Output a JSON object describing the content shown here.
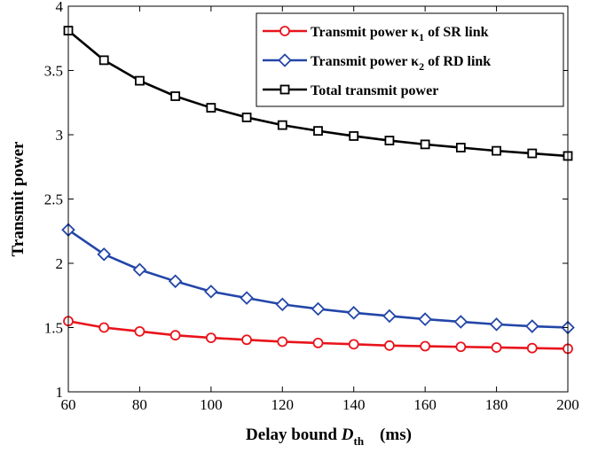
{
  "chart_data": {
    "type": "line",
    "xlabel": "Delay bound D_th (ms)",
    "xlabel_parts": {
      "main": "Delay bound ",
      "var": "D",
      "sub": "th",
      "unit": "(ms)"
    },
    "ylabel": "Transmit power",
    "xlim": [
      60,
      200
    ],
    "ylim": [
      1,
      4
    ],
    "x_ticks": [
      60,
      80,
      100,
      120,
      140,
      160,
      180,
      200
    ],
    "y_ticks": [
      1,
      1.5,
      2,
      2.5,
      3,
      3.5,
      4
    ],
    "x_tick_labels": [
      "60",
      "80",
      "100",
      "120",
      "140",
      "160",
      "180",
      "200"
    ],
    "y_tick_labels": [
      "1",
      "1.5",
      "2",
      "2.5",
      "3",
      "3.5",
      "4"
    ],
    "grid": false,
    "legend_position": "top-right",
    "x": [
      60,
      70,
      80,
      90,
      100,
      110,
      120,
      130,
      140,
      150,
      160,
      170,
      180,
      190,
      200
    ],
    "series": [
      {
        "name": "Transmit power κ1 of SR link",
        "legend": {
          "pre": "Transmit power κ",
          "sub": "1",
          "post": " of SR link"
        },
        "color": "#e8141c",
        "marker": "circle",
        "values": [
          1.55,
          1.5,
          1.47,
          1.44,
          1.42,
          1.405,
          1.39,
          1.38,
          1.37,
          1.36,
          1.355,
          1.35,
          1.345,
          1.34,
          1.335
        ]
      },
      {
        "name": "Transmit power κ2 of RD link",
        "legend": {
          "pre": "Transmit power κ",
          "sub": "2",
          "post": " of RD link"
        },
        "color": "#2346a8",
        "marker": "diamond",
        "values": [
          2.26,
          2.07,
          1.95,
          1.86,
          1.78,
          1.73,
          1.68,
          1.645,
          1.615,
          1.59,
          1.565,
          1.545,
          1.525,
          1.51,
          1.5
        ]
      },
      {
        "name": "Total transmit power",
        "legend": {
          "pre": "Total transmit power",
          "sub": "",
          "post": ""
        },
        "color": "#000000",
        "marker": "square",
        "values": [
          3.81,
          3.58,
          3.42,
          3.3,
          3.21,
          3.135,
          3.075,
          3.03,
          2.99,
          2.955,
          2.925,
          2.9,
          2.875,
          2.855,
          2.835
        ]
      }
    ]
  }
}
